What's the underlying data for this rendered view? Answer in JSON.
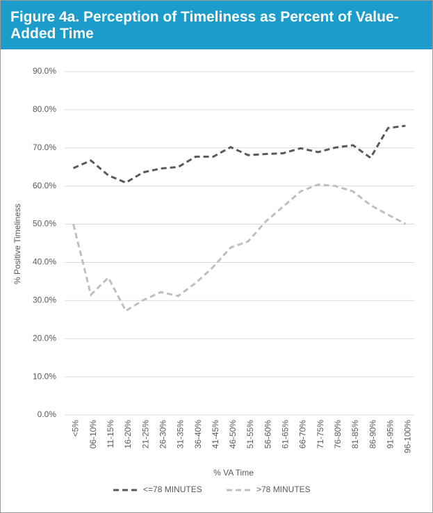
{
  "chart_data": {
    "type": "line",
    "title": "Figure 4a. Perception of Timeliness as Percent of Value-Added Time",
    "x_label": "% VA Time",
    "y_label": "% Positive Timeliness",
    "categories": [
      "<5%",
      "06-10%",
      "11-15%",
      "16-20%",
      "21-25%",
      "26-30%",
      "31-35%",
      "36-40%",
      "41-45%",
      "46-50%",
      "51-55%",
      "56-60%",
      "61-65%",
      "66-70%",
      "71-75%",
      "76-80%",
      "81-85%",
      "86-90%",
      "91-95%",
      "96-100%"
    ],
    "series": [
      {
        "name": "<=78 MINUTES",
        "color": "#595959",
        "values": [
          64.7,
          66.7,
          62.8,
          60.9,
          63.6,
          64.6,
          65.0,
          67.7,
          67.7,
          70.2,
          68.1,
          68.4,
          68.6,
          69.9,
          68.9,
          70.1,
          70.7,
          67.4,
          75.2,
          75.8
        ]
      },
      {
        "name": ">78 MINUTES",
        "color": "#bfbfbf",
        "values": [
          50.0,
          31.5,
          36.0,
          27.3,
          30.1,
          32.2,
          31.2,
          34.6,
          38.8,
          43.9,
          45.5,
          50.7,
          54.6,
          58.6,
          60.4,
          60.0,
          58.6,
          55.0,
          52.5,
          50.1
        ]
      }
    ],
    "ylim": [
      0,
      90
    ],
    "yticks": [
      {
        "value": 0,
        "label": "0.0%"
      },
      {
        "value": 10,
        "label": "10.0%"
      },
      {
        "value": 20,
        "label": "20.0%"
      },
      {
        "value": 30,
        "label": "30.0%"
      },
      {
        "value": 40,
        "label": "40.0%"
      },
      {
        "value": 50,
        "label": "50.0%"
      },
      {
        "value": 60,
        "label": "60.0%"
      },
      {
        "value": 70,
        "label": "70.0%"
      },
      {
        "value": 80,
        "label": "80.0%"
      },
      {
        "value": 90,
        "label": "90.0%"
      }
    ],
    "grid": true,
    "legend": "bottom",
    "dashed": true
  }
}
